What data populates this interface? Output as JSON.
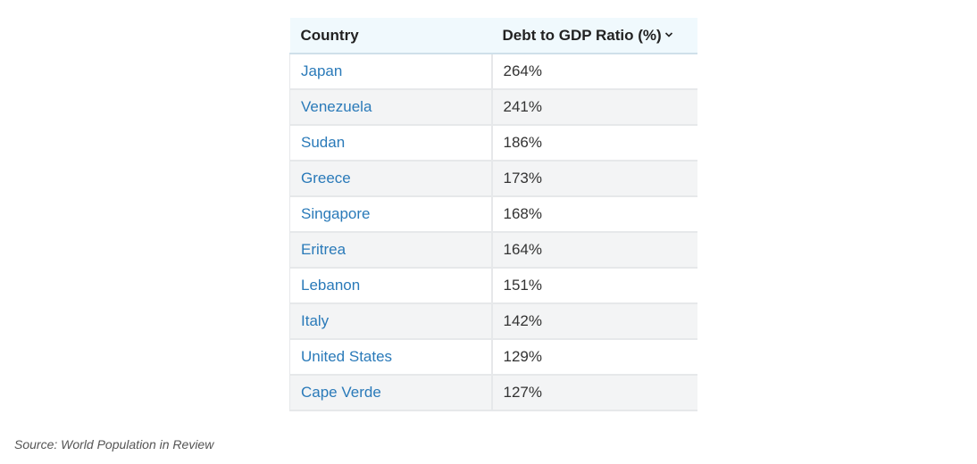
{
  "table": {
    "headers": {
      "country": "Country",
      "ratio": "Debt to GDP Ratio (%)",
      "sort_icon": "chevron-down-icon"
    },
    "rows": [
      {
        "country": "Japan",
        "ratio": "264%"
      },
      {
        "country": "Venezuela",
        "ratio": "241%"
      },
      {
        "country": "Sudan",
        "ratio": "186%"
      },
      {
        "country": "Greece",
        "ratio": "173%"
      },
      {
        "country": "Singapore",
        "ratio": "168%"
      },
      {
        "country": "Eritrea",
        "ratio": "164%"
      },
      {
        "country": "Lebanon",
        "ratio": "151%"
      },
      {
        "country": "Italy",
        "ratio": "142%"
      },
      {
        "country": "United States",
        "ratio": "129%"
      },
      {
        "country": "Cape Verde",
        "ratio": "127%"
      }
    ]
  },
  "source": "Source: World Population in Review",
  "colors": {
    "header_bg": "#f0f9fd",
    "link": "#2a7ab9",
    "stripe": "#f3f4f5",
    "text": "#333333"
  }
}
